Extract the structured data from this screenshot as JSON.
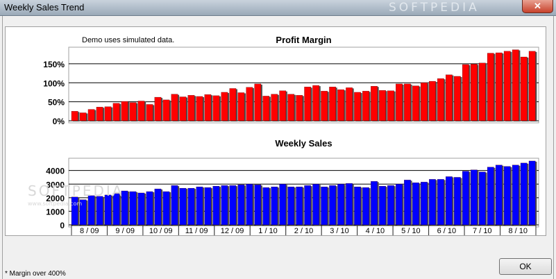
{
  "window": {
    "title": "Weekly Sales Trend",
    "watermark": "SOFTPEDIA",
    "close_glyph": "✕"
  },
  "demo_text": "Demo uses simulated data.",
  "footnote": "* Margin over 400%",
  "ok_label": "OK",
  "body_watermark": "SOFTPEDIA",
  "body_watermark_small": "www.softpedia.com",
  "colors": {
    "profit": "#ff0000",
    "sales": "#0000ff"
  },
  "chart_data": [
    {
      "type": "bar",
      "title": "Profit Margin",
      "ytick_labels": [
        "150%",
        "100%",
        "50%",
        "0%"
      ],
      "ytick_values": [
        150,
        100,
        50,
        0
      ],
      "ylim": [
        0,
        190
      ],
      "grid": true,
      "values": [
        25,
        21,
        30,
        36,
        37,
        46,
        51,
        48,
        52,
        43,
        62,
        55,
        70,
        63,
        67,
        64,
        69,
        66,
        75,
        85,
        74,
        88,
        97,
        65,
        70,
        79,
        70,
        67,
        89,
        93,
        78,
        89,
        82,
        87,
        75,
        78,
        91,
        80,
        79,
        97,
        97,
        92,
        100,
        104,
        111,
        121,
        117,
        148,
        149,
        152,
        178,
        179,
        183,
        187,
        168,
        183
      ]
    },
    {
      "type": "bar",
      "title": "Weekly Sales",
      "ytick_labels": [
        "4000",
        "3000",
        "2000",
        "1000",
        "0"
      ],
      "ytick_values": [
        4000,
        3000,
        2000,
        1000,
        0
      ],
      "ylim": [
        0,
        4800
      ],
      "grid": true,
      "values": [
        2050,
        1850,
        2150,
        2100,
        2200,
        2300,
        2500,
        2450,
        2350,
        2450,
        2650,
        2450,
        2900,
        2700,
        2700,
        2800,
        2750,
        2850,
        2900,
        2900,
        2950,
        3000,
        2950,
        2750,
        2800,
        3000,
        2800,
        2800,
        2900,
        3000,
        2800,
        2900,
        3000,
        3050,
        2800,
        2750,
        3200,
        2850,
        2900,
        3000,
        3300,
        3100,
        3150,
        3350,
        3350,
        3550,
        3500,
        3950,
        4050,
        3900,
        4250,
        4400,
        4300,
        4400,
        4550,
        4700
      ]
    }
  ],
  "months": [
    "8 / 09",
    "9 / 09",
    "10 / 09",
    "11 / 09",
    "12 / 09",
    "1 / 10",
    "2 / 10",
    "3 / 10",
    "4 / 10",
    "5 / 10",
    "6 / 10",
    "7 / 10",
    "8 / 10"
  ]
}
